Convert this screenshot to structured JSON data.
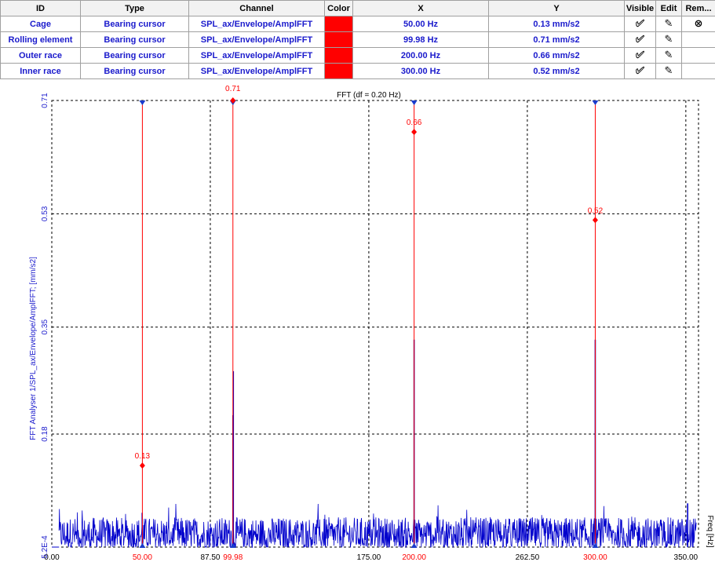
{
  "table": {
    "headers": [
      "ID",
      "Type",
      "Channel",
      "Color",
      "X",
      "Y",
      "Visible",
      "Edit",
      "Rem..."
    ],
    "rows": [
      {
        "id": "Cage",
        "type": "Bearing cursor",
        "channel": "SPL_ax/Envelope/AmplFFT",
        "x": "50.00 Hz",
        "y": "0.13 mm/s2",
        "removable": true
      },
      {
        "id": "Rolling element",
        "type": "Bearing cursor",
        "channel": "SPL_ax/Envelope/AmplFFT",
        "x": "99.98 Hz",
        "y": "0.71 mm/s2",
        "removable": false
      },
      {
        "id": "Outer race",
        "type": "Bearing cursor",
        "channel": "SPL_ax/Envelope/AmplFFT",
        "x": "200.00 Hz",
        "y": "0.66 mm/s2",
        "removable": false
      },
      {
        "id": "Inner race",
        "type": "Bearing cursor",
        "channel": "SPL_ax/Envelope/AmplFFT",
        "x": "300.00 Hz",
        "y": "0.52 mm/s2",
        "removable": false
      }
    ],
    "icons": {
      "visible": "check-circle-icon",
      "edit": "pencil-icon",
      "remove": "x-circle-icon"
    },
    "cursor_color": "#ff0000"
  },
  "chart_data": {
    "type": "line",
    "title": "FFT (df = 0.20 Hz)",
    "xlabel": "Freq [Hz]",
    "ylabel": "FFT Analyser 1/SPL_ax/Envelope/AmplFFT; [mm/s2]",
    "xlim": [
      0,
      357
    ],
    "ylim": [
      0.00052,
      0.71
    ],
    "x_ticks": [
      "0.00",
      "87.50",
      "175.00",
      "262.50",
      "350.00"
    ],
    "y_ticks": [
      "5.2E-4",
      "0.18",
      "0.35",
      "0.53",
      "0.71"
    ],
    "y_tick_values": [
      0.00052,
      0.18,
      0.35,
      0.53,
      0.71
    ],
    "grid": true,
    "series_color": "#0000cc",
    "cursor_color": "#ff0000",
    "noise_typical": 0.03,
    "noise_max": 0.07,
    "peaks": [
      {
        "x": 49.9,
        "y": 0.055
      },
      {
        "x": 99.98,
        "y": 0.21
      },
      {
        "x": 100.2,
        "y": 0.28
      },
      {
        "x": 200.0,
        "y": 0.33
      },
      {
        "x": 300.0,
        "y": 0.33
      },
      {
        "x": 351.0,
        "y": 0.07
      }
    ],
    "cursors": [
      {
        "x": 50.0,
        "y": 0.13,
        "x_label": "50.00",
        "y_label": "0.13"
      },
      {
        "x": 99.98,
        "y": 0.71,
        "x_label": "99.98",
        "y_label": "0.71"
      },
      {
        "x": 200.0,
        "y": 0.66,
        "x_label": "200.00",
        "y_label": "0.66"
      },
      {
        "x": 300.0,
        "y": 0.52,
        "x_label": "300.00",
        "y_label": "0.52"
      }
    ]
  }
}
